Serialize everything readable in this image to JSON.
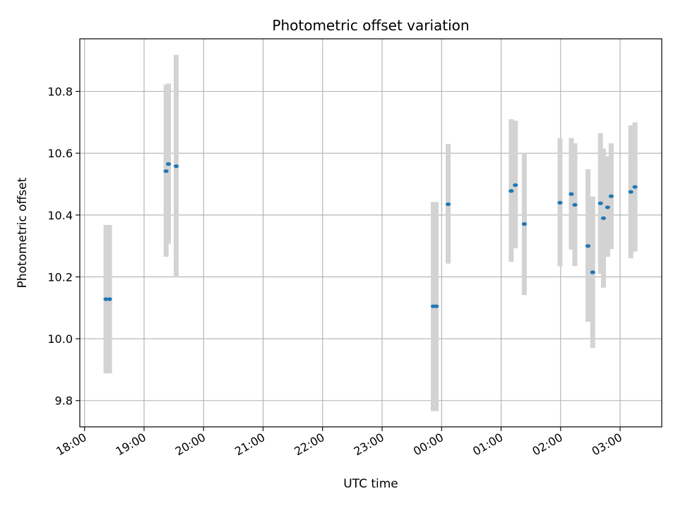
{
  "chart_data": {
    "type": "scatter",
    "title": "Photometric offset variation",
    "xlabel": "UTC time",
    "ylabel": "Photometric offset",
    "x_unit": "hours after 18:00 UTC",
    "xlim": [
      -0.08,
      9.7
    ],
    "ylim": [
      9.715,
      10.97
    ],
    "grid": true,
    "legend": "none",
    "x_ticks": [
      {
        "value": 0,
        "label": "18:00"
      },
      {
        "value": 1,
        "label": "19:00"
      },
      {
        "value": 2,
        "label": "20:00"
      },
      {
        "value": 3,
        "label": "21:00"
      },
      {
        "value": 4,
        "label": "22:00"
      },
      {
        "value": 5,
        "label": "23:00"
      },
      {
        "value": 6,
        "label": "00:00"
      },
      {
        "value": 7,
        "label": "01:00"
      },
      {
        "value": 8,
        "label": "02:00"
      },
      {
        "value": 9,
        "label": "03:00"
      }
    ],
    "y_ticks": [
      {
        "value": 9.8,
        "label": "9.8"
      },
      {
        "value": 10.0,
        "label": "10.0"
      },
      {
        "value": 10.2,
        "label": "10.2"
      },
      {
        "value": 10.4,
        "label": "10.4"
      },
      {
        "value": 10.6,
        "label": "10.6"
      },
      {
        "value": 10.8,
        "label": "10.8"
      }
    ],
    "colors": {
      "point": "#1f77b4",
      "errorbar": "#d3d3d3",
      "grid": "#b0b0b0"
    },
    "points": [
      {
        "x": 0.36,
        "y": 10.128,
        "low": 9.888,
        "high": 10.368
      },
      {
        "x": 0.42,
        "y": 10.128,
        "low": 9.888,
        "high": 10.368
      },
      {
        "x": 1.37,
        "y": 10.542,
        "low": 10.265,
        "high": 10.822
      },
      {
        "x": 1.41,
        "y": 10.565,
        "low": 10.307,
        "high": 10.825
      },
      {
        "x": 1.54,
        "y": 10.558,
        "low": 10.198,
        "high": 10.918
      },
      {
        "x": 5.86,
        "y": 10.105,
        "low": 9.766,
        "high": 10.442
      },
      {
        "x": 5.91,
        "y": 10.105,
        "low": 9.766,
        "high": 10.442
      },
      {
        "x": 6.11,
        "y": 10.435,
        "low": 10.243,
        "high": 10.63
      },
      {
        "x": 7.17,
        "y": 10.478,
        "low": 10.249,
        "high": 10.71
      },
      {
        "x": 7.24,
        "y": 10.497,
        "low": 10.293,
        "high": 10.705
      },
      {
        "x": 7.39,
        "y": 10.371,
        "low": 10.141,
        "high": 10.6
      },
      {
        "x": 7.99,
        "y": 10.44,
        "low": 10.234,
        "high": 10.648
      },
      {
        "x": 8.18,
        "y": 10.468,
        "low": 10.288,
        "high": 10.649
      },
      {
        "x": 8.24,
        "y": 10.433,
        "low": 10.235,
        "high": 10.632
      },
      {
        "x": 8.46,
        "y": 10.3,
        "low": 10.055,
        "high": 10.548
      },
      {
        "x": 8.54,
        "y": 10.215,
        "low": 9.97,
        "high": 10.46
      },
      {
        "x": 8.67,
        "y": 10.438,
        "low": 10.21,
        "high": 10.665
      },
      {
        "x": 8.72,
        "y": 10.39,
        "low": 10.165,
        "high": 10.615
      },
      {
        "x": 8.79,
        "y": 10.425,
        "low": 10.265,
        "high": 10.59
      },
      {
        "x": 8.85,
        "y": 10.461,
        "low": 10.29,
        "high": 10.632
      },
      {
        "x": 9.18,
        "y": 10.475,
        "low": 10.26,
        "high": 10.69
      },
      {
        "x": 9.25,
        "y": 10.491,
        "low": 10.282,
        "high": 10.7
      }
    ]
  }
}
